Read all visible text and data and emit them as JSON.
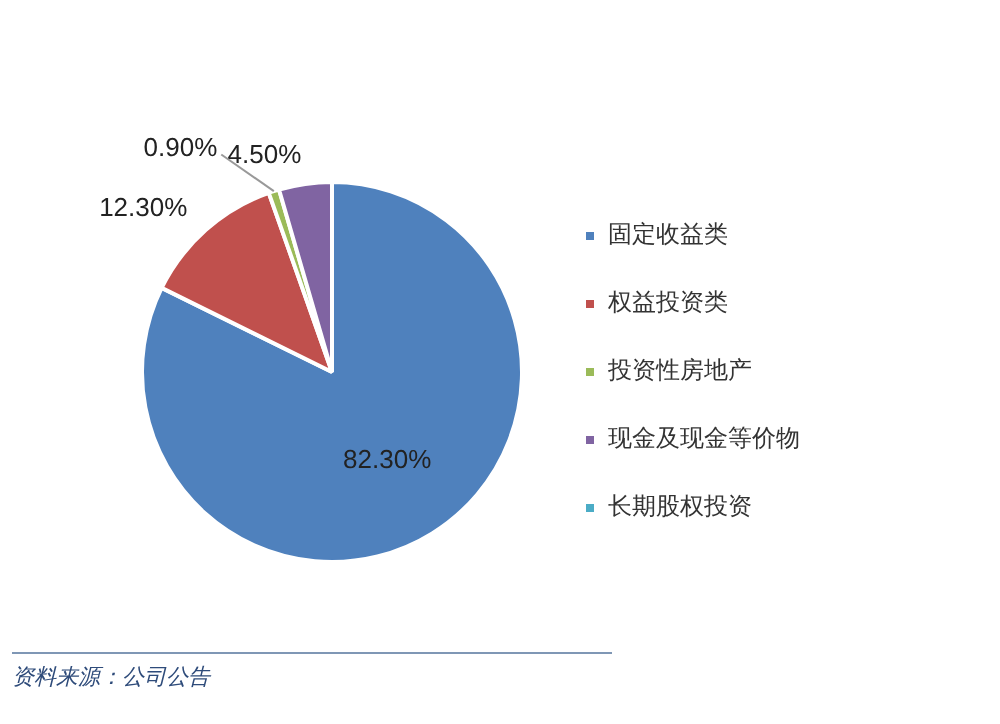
{
  "chart_data": {
    "type": "pie",
    "categories": [
      "固定收益类",
      "权益投资类",
      "投资性房地产",
      "现金及现金等价物",
      "长期股权投资"
    ],
    "values": [
      82.3,
      12.3,
      0.9,
      4.5,
      0
    ],
    "value_labels": [
      "82.30%",
      "12.30%",
      "0.90%",
      "4.50%",
      null
    ],
    "colors": [
      "#4f81bd",
      "#c0504d",
      "#9bbb59",
      "#8064a2",
      "#4bacc6"
    ],
    "legend": "right",
    "annotations": [
      "资料来源：公司公告"
    ]
  }
}
